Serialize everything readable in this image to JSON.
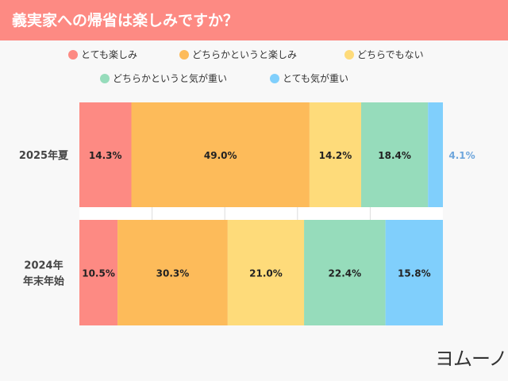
{
  "title": "義実家への帰省は楽しみですか？",
  "chart_data": {
    "type": "bar",
    "orientation": "horizontal-stacked-100",
    "categories": [
      "2025年夏",
      "2024年\n年末年始"
    ],
    "series": [
      {
        "name": "とても楽しみ",
        "color": "#fd8a83",
        "values": [
          14.3,
          10.5
        ]
      },
      {
        "name": "どちらかというと楽しみ",
        "color": "#fdbb5a",
        "values": [
          49.0,
          30.3
        ]
      },
      {
        "name": "どちらでもない",
        "color": "#fedb7a",
        "values": [
          14.2,
          21.0
        ]
      },
      {
        "name": "どちらかというと気が重い",
        "color": "#96dcbb",
        "values": [
          18.4,
          22.4
        ]
      },
      {
        "name": "とても気が重い",
        "color": "#80cffc",
        "values": [
          4.1,
          15.8
        ]
      }
    ],
    "data_labels": [
      [
        "14.3%",
        "49.0%",
        "14.2%",
        "18.4%",
        "4.1%"
      ],
      [
        "10.5%",
        "30.3%",
        "21.0%",
        "22.4%",
        "15.8%"
      ]
    ],
    "xlim": [
      0,
      100
    ],
    "grid": true,
    "legend": "top"
  },
  "logo": "ヨムーノ"
}
